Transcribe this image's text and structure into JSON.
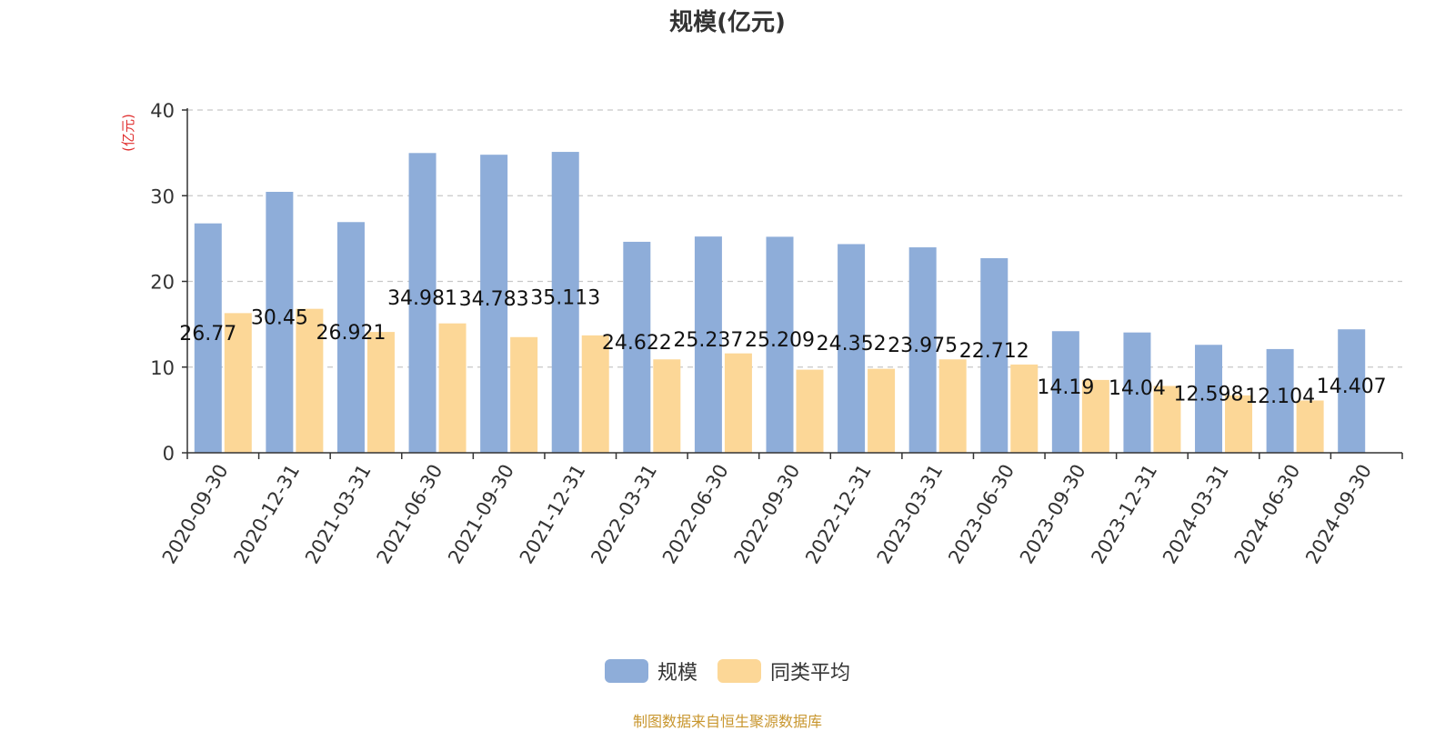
{
  "title": "规模(亿元)",
  "footer": "制图数据来自恒生聚源数据库",
  "colors": {
    "series_scale": "#8eadd9",
    "series_avg": "#fcd797",
    "unit_label": "#e03030",
    "footer": "#c8962e",
    "grid": "#c8c8c8",
    "axis": "#333333"
  },
  "chart_data": {
    "type": "bar",
    "ylabel": "(亿元)",
    "ylim": [
      0,
      40
    ],
    "yticks": [
      0,
      10,
      20,
      30,
      40
    ],
    "grid": true,
    "legend_position": "bottom-center",
    "categories": [
      "2020-09-30",
      "2020-12-31",
      "2021-03-31",
      "2021-06-30",
      "2021-09-30",
      "2021-12-31",
      "2022-03-31",
      "2022-06-30",
      "2022-09-30",
      "2022-12-31",
      "2023-03-31",
      "2023-06-30",
      "2023-09-30",
      "2023-12-31",
      "2024-03-31",
      "2024-06-30",
      "2024-09-30"
    ],
    "series": [
      {
        "name": "规模",
        "values": [
          26.77,
          30.45,
          26.921,
          34.981,
          34.783,
          35.113,
          24.622,
          25.237,
          25.209,
          24.352,
          23.975,
          22.712,
          14.19,
          14.04,
          12.598,
          12.104,
          14.407
        ],
        "labels": [
          "26.77",
          "30.45",
          "26.921",
          "34.981",
          "34.783",
          "35.113",
          "24.622",
          "25.237",
          "25.209",
          "24.352",
          "23.975",
          "22.712",
          "14.19",
          "14.04",
          "12.598",
          "12.104",
          "14.407"
        ]
      },
      {
        "name": "同类平均",
        "values": [
          16.3,
          16.8,
          14.1,
          15.1,
          13.5,
          13.7,
          10.9,
          11.6,
          9.7,
          9.8,
          10.9,
          10.3,
          8.5,
          7.8,
          6.7,
          6.1,
          null
        ]
      }
    ]
  }
}
